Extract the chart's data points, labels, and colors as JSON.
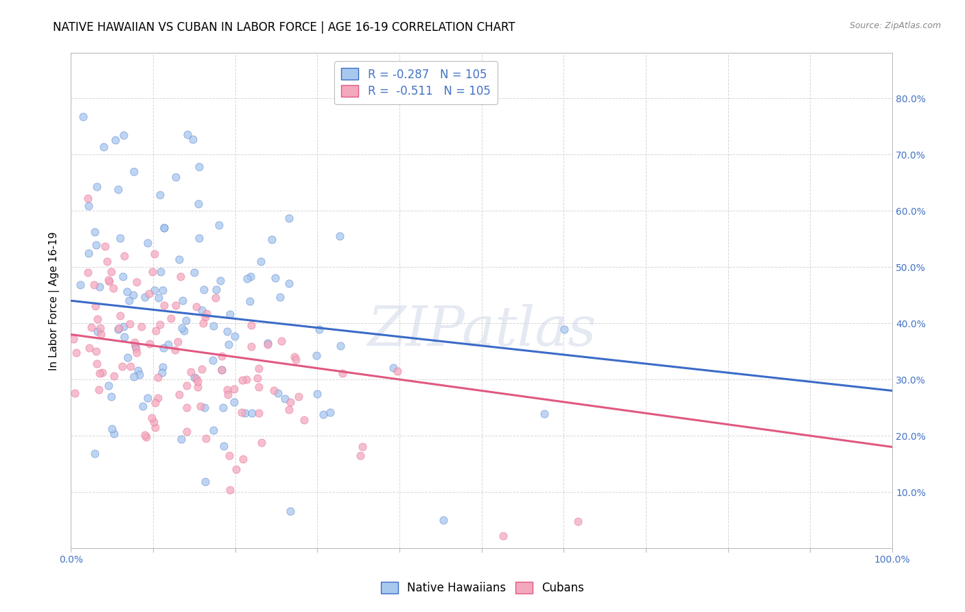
{
  "title": "NATIVE HAWAIIAN VS CUBAN IN LABOR FORCE | AGE 16-19 CORRELATION CHART",
  "source": "Source: ZipAtlas.com",
  "ylabel": "In Labor Force | Age 16-19",
  "xlim": [
    0.0,
    1.0
  ],
  "ylim": [
    0.0,
    0.88
  ],
  "x_ticks": [
    0.0,
    0.1,
    0.2,
    0.3,
    0.4,
    0.5,
    0.6,
    0.7,
    0.8,
    0.9,
    1.0
  ],
  "y_ticks": [
    0.0,
    0.1,
    0.2,
    0.3,
    0.4,
    0.5,
    0.6,
    0.7,
    0.8
  ],
  "blue_color": "#A8C8EE",
  "pink_color": "#F4A8BE",
  "blue_line_color": "#3B6BC8",
  "pink_line_color": "#E05880",
  "R1": -0.287,
  "R2": -0.511,
  "N": 105,
  "seed": 42,
  "watermark": "ZIPatlas",
  "background_color": "#FFFFFF",
  "grid_color": "#CCCCCC",
  "label_color": "#4472C4",
  "title_fontsize": 12,
  "axis_label_fontsize": 11,
  "tick_fontsize": 10,
  "legend_fontsize": 12,
  "blue_intercept": 0.44,
  "blue_slope": -0.16,
  "pink_intercept": 0.38,
  "pink_slope": -0.2
}
